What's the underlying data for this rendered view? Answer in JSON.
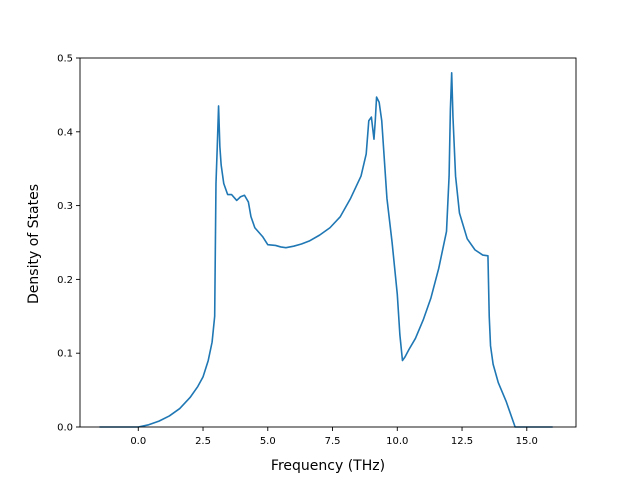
{
  "chart_data": {
    "type": "line",
    "title": "",
    "xlabel": "Frequency (THz)",
    "ylabel": "Density of States",
    "xlim": [
      -2.25,
      16.9
    ],
    "ylim": [
      0.0,
      0.5
    ],
    "grid": false,
    "line_color": "#1f77b4",
    "xticks": [
      {
        "value": 0.0,
        "label": "0.0"
      },
      {
        "value": 2.5,
        "label": "2.5"
      },
      {
        "value": 5.0,
        "label": "5.0"
      },
      {
        "value": 7.5,
        "label": "7.5"
      },
      {
        "value": 10.0,
        "label": "10.0"
      },
      {
        "value": 12.5,
        "label": "12.5"
      },
      {
        "value": 15.0,
        "label": "15.0"
      }
    ],
    "yticks": [
      {
        "value": 0.0,
        "label": "0.0"
      },
      {
        "value": 0.1,
        "label": "0.1"
      },
      {
        "value": 0.2,
        "label": "0.2"
      },
      {
        "value": 0.3,
        "label": "0.3"
      },
      {
        "value": 0.4,
        "label": "0.4"
      },
      {
        "value": 0.5,
        "label": "0.5"
      }
    ],
    "series": [
      {
        "x": [
          -1.5,
          -0.5,
          0.0,
          0.4,
          0.8,
          1.2,
          1.6,
          2.0,
          2.3,
          2.5,
          2.7,
          2.85,
          2.95,
          3.0,
          3.05,
          3.1,
          3.15,
          3.2,
          3.3,
          3.45,
          3.6,
          3.8,
          3.95,
          4.1,
          4.25,
          4.35,
          4.5,
          4.8,
          5.0,
          5.3,
          5.5,
          5.7,
          6.0,
          6.3,
          6.6,
          7.0,
          7.4,
          7.8,
          8.2,
          8.6,
          8.8,
          8.9,
          9.0,
          9.1,
          9.15,
          9.2,
          9.3,
          9.4,
          9.6,
          9.8,
          10.0,
          10.1,
          10.2,
          10.3,
          10.45,
          10.7,
          11.0,
          11.3,
          11.6,
          11.9,
          12.0,
          12.05,
          12.1,
          12.15,
          12.25,
          12.4,
          12.7,
          13.0,
          13.3,
          13.5,
          13.55,
          13.6,
          13.7,
          13.9,
          14.2,
          14.45,
          14.55,
          16.0
        ],
        "y": [
          0.0,
          0.0,
          0.0,
          0.003,
          0.008,
          0.015,
          0.025,
          0.04,
          0.055,
          0.068,
          0.09,
          0.115,
          0.15,
          0.33,
          0.38,
          0.435,
          0.38,
          0.355,
          0.33,
          0.315,
          0.315,
          0.307,
          0.312,
          0.314,
          0.305,
          0.285,
          0.27,
          0.258,
          0.247,
          0.246,
          0.244,
          0.243,
          0.245,
          0.248,
          0.252,
          0.26,
          0.27,
          0.285,
          0.31,
          0.34,
          0.37,
          0.415,
          0.42,
          0.39,
          0.415,
          0.447,
          0.44,
          0.415,
          0.31,
          0.25,
          0.18,
          0.125,
          0.09,
          0.095,
          0.105,
          0.12,
          0.145,
          0.175,
          0.215,
          0.265,
          0.34,
          0.43,
          0.48,
          0.42,
          0.34,
          0.29,
          0.255,
          0.24,
          0.233,
          0.232,
          0.15,
          0.11,
          0.085,
          0.06,
          0.035,
          0.01,
          0.0,
          0.0
        ]
      }
    ]
  }
}
